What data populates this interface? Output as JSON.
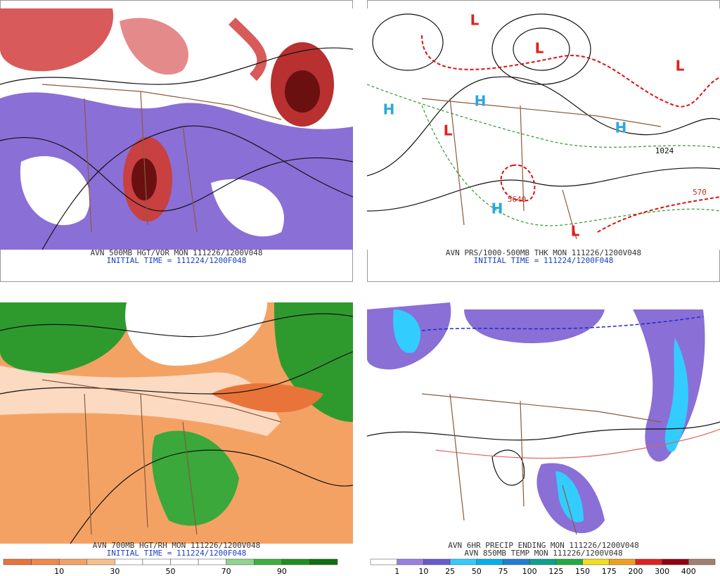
{
  "panels": [
    {
      "caption": [
        "AVN 500MB HGT/VOR MON 111226/1200V048",
        "INITIAL TIME = 111224/1200F048"
      ]
    },
    {
      "caption": [
        "AVN PRS/1000-500MB THK MON 111226/1200V048",
        "INITIAL TIME = 111224/1200F048"
      ],
      "centers": [
        "L",
        "L",
        "L",
        "H",
        "H",
        "H",
        "L",
        "H",
        "L"
      ],
      "contour_labels": [
        "1024",
        "570",
        "5640"
      ]
    },
    {
      "caption": [
        "AVN 700MB HGT/RH MON 111226/1200V048",
        "INITIAL TIME = 111224/1200F048"
      ],
      "colorbar": {
        "labels": [
          10,
          30,
          50,
          70,
          90
        ],
        "colors": [
          "#e8743a",
          "#f08a48",
          "#f4a264",
          "#f8c08a",
          "#ffffff",
          "#ffffff",
          "#ffffff",
          "#ffffff",
          "#8fd48f",
          "#3fae3f",
          "#1f8f1f",
          "#107010"
        ]
      }
    },
    {
      "caption": [
        "AVN 6HR PRECIP ENDING MON 111226/1200V048",
        "AVN 850MB TEMP MON 111226/1200V048"
      ],
      "colorbar": {
        "labels": [
          1,
          10,
          25,
          50,
          75,
          100,
          125,
          150,
          175,
          200,
          300,
          400
        ],
        "colors": [
          "#ffffff",
          "#9b7fe0",
          "#6a5acd",
          "#33ccff",
          "#00b0e8",
          "#1e7fd0",
          "#0fa090",
          "#22aa44",
          "#f0e020",
          "#f0a020",
          "#e02020",
          "#900010",
          "#a08070"
        ]
      }
    }
  ]
}
